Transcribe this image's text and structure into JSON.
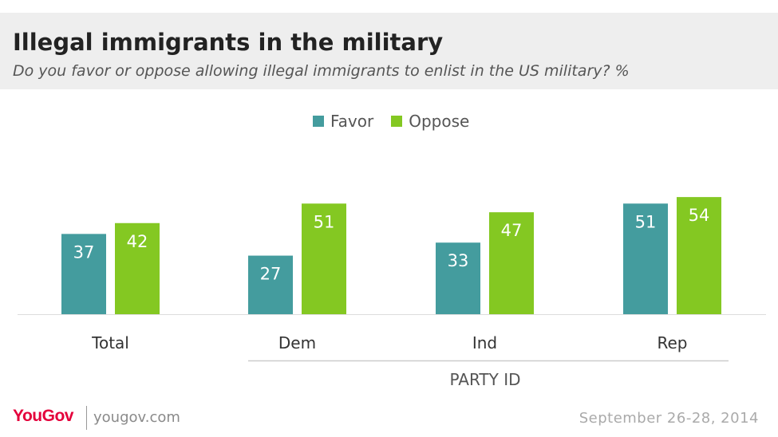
{
  "header": {
    "title": "Illegal immigrants in the military",
    "subtitle": "Do you favor or oppose allowing illegal immigrants to enlist in the US military? %"
  },
  "footer": {
    "logo": "YouGov",
    "url": "yougov.com",
    "date": "September 26-28, 2014"
  },
  "colors": {
    "favor": "#449c9e",
    "oppose": "#84c822",
    "label_dark": "#333333",
    "baseline": "#dddddd",
    "group_line": "#cccccc"
  },
  "chart_data": {
    "type": "bar",
    "title": "Illegal immigrants in the military",
    "subtitle": "Do you favor or oppose allowing illegal immigrants to enlist in the US military? %",
    "categories": [
      "Total",
      "Dem",
      "Ind",
      "Rep"
    ],
    "series": [
      {
        "name": "Favor",
        "values": [
          37,
          27,
          33,
          51
        ]
      },
      {
        "name": "Oppose",
        "values": [
          42,
          51,
          47,
          54
        ]
      }
    ],
    "legend_position": "top-center",
    "category_group": {
      "label": "PARTY ID",
      "categories": [
        "Dem",
        "Ind",
        "Rep"
      ]
    },
    "ylim": [
      0,
      60
    ],
    "grid": false,
    "data_labels": true
  }
}
